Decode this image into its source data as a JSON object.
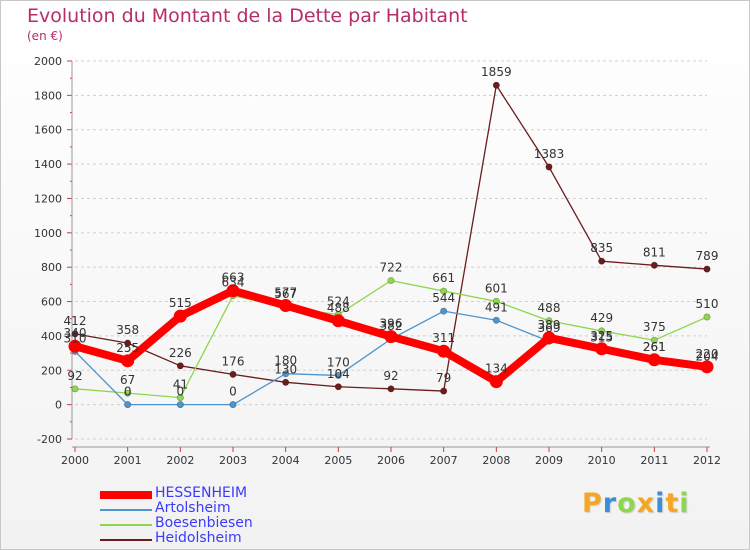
{
  "chart_data": {
    "type": "line",
    "title": "Evolution du Montant de la Dette par Habitant",
    "subtitle": "(en €)",
    "categories": [
      "2000",
      "2001",
      "2002",
      "2003",
      "2004",
      "2005",
      "2006",
      "2007",
      "2008",
      "2009",
      "2010",
      "2011",
      "2012"
    ],
    "ylim": [
      -200,
      2000
    ],
    "yticks": [
      "-200",
      "0",
      "200",
      "400",
      "600",
      "800",
      "1000",
      "1200",
      "1400",
      "1600",
      "1800",
      "2000"
    ],
    "grid": "horizontal dashed",
    "legend_position": "bottom-left",
    "series": [
      {
        "name": "HESSENHEIM",
        "color": "#ff0000",
        "values": [
          340,
          255,
          515,
          663,
          577,
          488,
          396,
          311,
          134,
          389,
          325,
          261,
          220
        ],
        "labels": [
          "340",
          "255",
          "515",
          "663",
          "577",
          "488",
          "396",
          "311",
          "134",
          "389",
          "325",
          "261",
          "220"
        ]
      },
      {
        "name": "Artolsheim",
        "color": "#4f94cd",
        "values": [
          310,
          0,
          0,
          0,
          180,
          170,
          382,
          544,
          491,
          369,
          315,
          261,
          204
        ],
        "labels": [
          "310",
          "0",
          "0",
          "0",
          "180",
          "170",
          "382",
          "544",
          "491",
          "369",
          "315",
          "261",
          "204"
        ]
      },
      {
        "name": "Boesenbiesen",
        "color": "#8ed64e",
        "values": [
          92,
          67,
          41,
          634,
          567,
          524,
          722,
          661,
          601,
          488,
          429,
          375,
          510
        ],
        "labels": [
          "92",
          "67",
          "41",
          "634",
          "567",
          "524",
          "722",
          "661",
          "601",
          "488",
          "429",
          "375",
          "510"
        ]
      },
      {
        "name": "Heidolsheim",
        "color": "#6b1c1c",
        "values": [
          412,
          358,
          226,
          176,
          130,
          104,
          92,
          79,
          1859,
          1383,
          835,
          811,
          789
        ],
        "labels": [
          "412",
          "358",
          "226",
          "176",
          "130",
          "104",
          "92",
          "79",
          "1859",
          "1383",
          "835",
          "811",
          "789"
        ]
      }
    ]
  },
  "logo": {
    "letters": [
      "P",
      "r",
      "o",
      "x",
      "i",
      "t",
      "i"
    ],
    "colors": [
      "#f5a623",
      "#3a8fd8",
      "#8ed64e",
      "#f5a623",
      "#3a8fd8",
      "#f5a623",
      "#8ed64e"
    ]
  }
}
